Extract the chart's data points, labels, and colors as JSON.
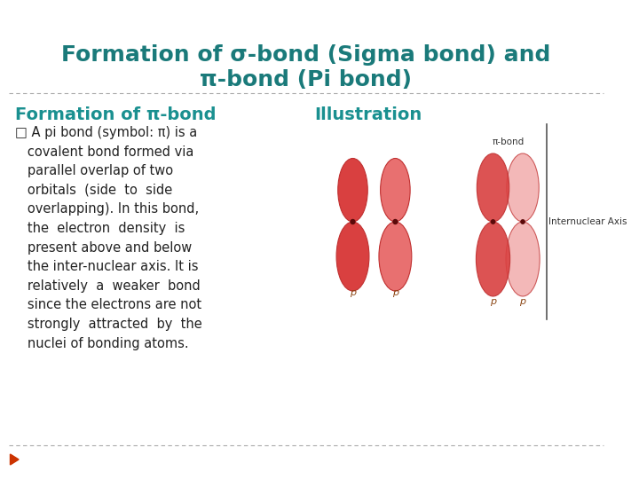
{
  "title": "Formation of σ-bond (Sigma bond) and\nπ-bond (Pi bond)",
  "title_color": "#1a7a7a",
  "title_fontsize": 18,
  "section_left": "Formation of π-bond",
  "section_right": "Illustration",
  "section_color": "#1a9090",
  "section_fontsize": 14,
  "body_text": "□ A pi bond (symbol: π) is a\n   covalent bond formed via\n   parallel overlap of two\n   orbitals  (side  to  side\n   overlapping). In this bond,\n   the  electron  density  is\n   present above and below\n   the inter-nuclear axis. It is\n   relatively  a  weaker  bond\n   since the electrons are not\n   strongly  attracted  by  the\n   nuclei of bonding atoms.",
  "body_fontsize": 10.5,
  "body_color": "#222222",
  "bg_color": "#ffffff",
  "dash_color": "#aaaaaa",
  "orbital_color_dark": "#d94040",
  "orbital_color_mid": "#e87070",
  "orbital_color_light": "#f0a0a0",
  "p_label_color": "#8b4513",
  "label_p": "p",
  "label_pi_bond": "π-bond",
  "label_internuclear": "Internuclear Axis",
  "arrow_color": "#cc3300"
}
